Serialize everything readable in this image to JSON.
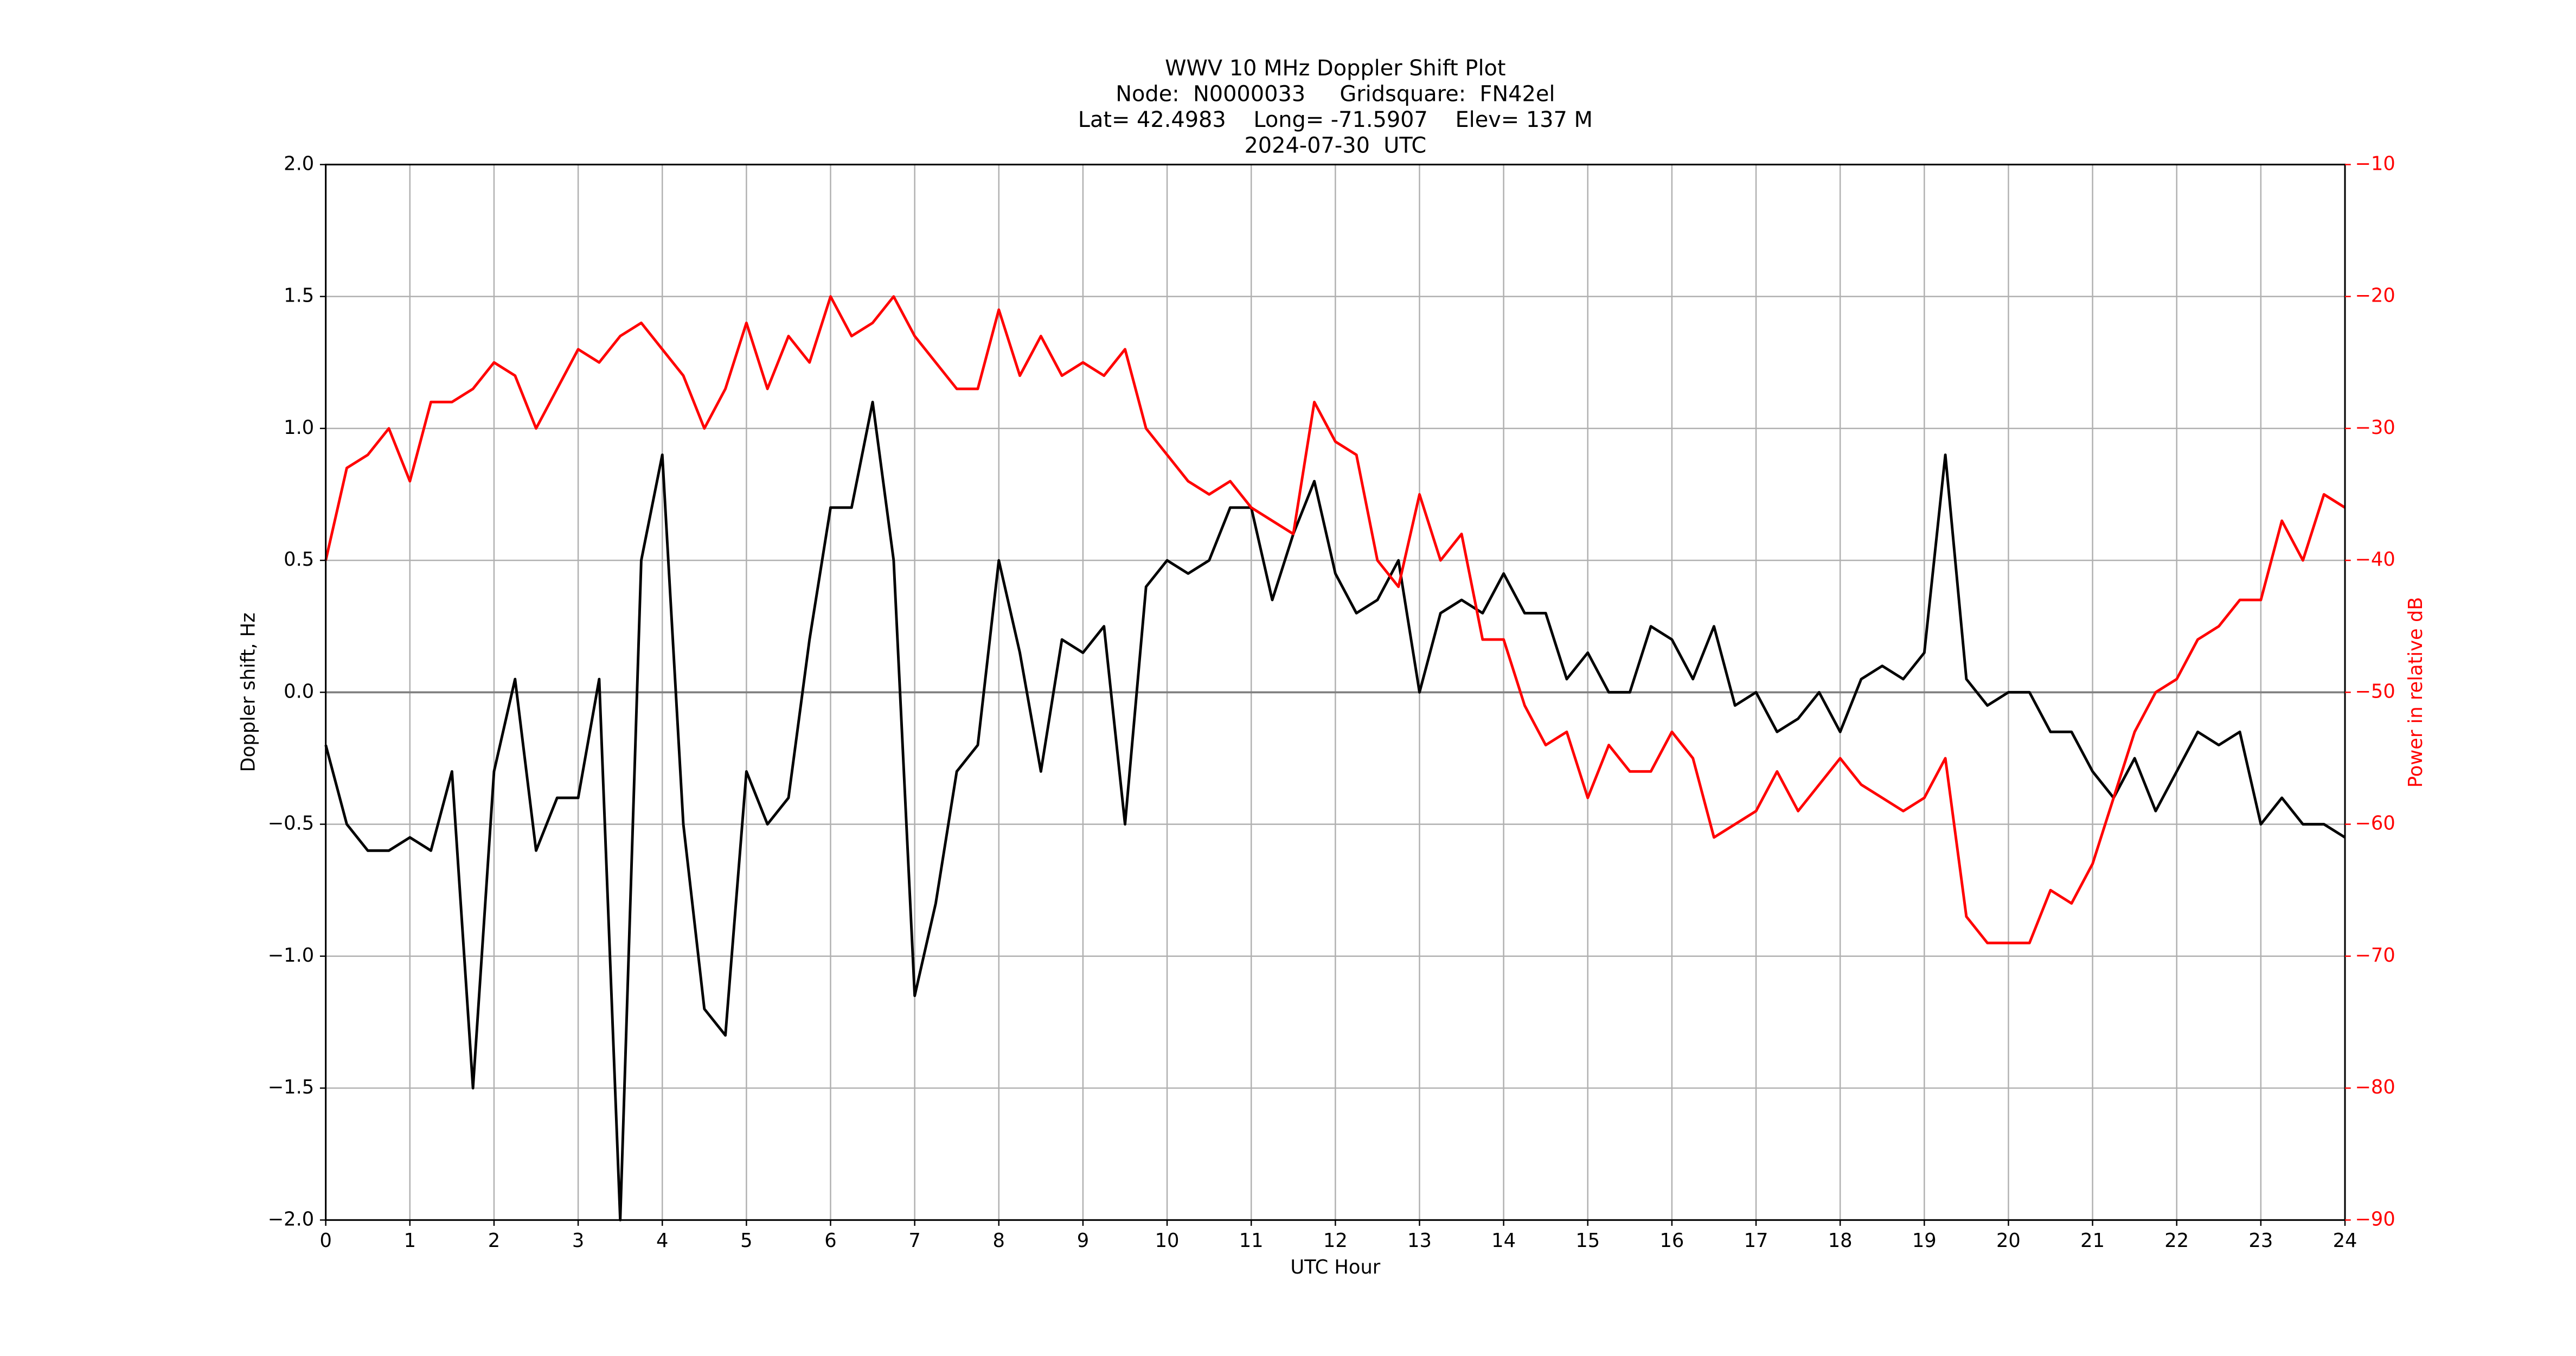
{
  "chart_data": {
    "type": "line",
    "title": "WWV 10 MHz Doppler Shift Plot",
    "subtitle_lines": [
      "Node:  N0000033     Gridsquare:  FN42el",
      "Lat= 42.4983    Long= -71.5907    Elev= 137 M",
      "2024-07-30  UTC"
    ],
    "x_label": "UTC Hour",
    "y_label": "Doppler shift, Hz",
    "y2_label": "Power in relative dB",
    "x": [
      0,
      0.25,
      0.5,
      0.75,
      1,
      1.25,
      1.5,
      1.75,
      2,
      2.25,
      2.5,
      2.75,
      3,
      3.25,
      3.5,
      3.75,
      4,
      4.25,
      4.5,
      4.75,
      5,
      5.25,
      5.5,
      5.75,
      6,
      6.25,
      6.5,
      6.75,
      7,
      7.25,
      7.5,
      7.75,
      8,
      8.25,
      8.5,
      8.75,
      9,
      9.25,
      9.5,
      9.75,
      10,
      10.25,
      10.5,
      10.75,
      11,
      11.25,
      11.5,
      11.75,
      12,
      12.25,
      12.5,
      12.75,
      13,
      13.25,
      13.5,
      13.75,
      14,
      14.25,
      14.5,
      14.75,
      15,
      15.25,
      15.5,
      15.75,
      16,
      16.25,
      16.5,
      16.75,
      17,
      17.25,
      17.5,
      17.75,
      18,
      18.25,
      18.5,
      18.75,
      19,
      19.25,
      19.5,
      19.75,
      20,
      20.25,
      20.5,
      20.75,
      21,
      21.25,
      21.5,
      21.75,
      22,
      22.25,
      22.5,
      22.75,
      23,
      23.25,
      23.5,
      23.75,
      24
    ],
    "series": [
      {
        "color": "#000000",
        "axis": "y",
        "values": [
          -0.2,
          -0.5,
          -0.6,
          -0.6,
          -0.55,
          -0.6,
          -0.3,
          -1.5,
          -0.3,
          0.05,
          -0.6,
          -0.4,
          -0.4,
          0.05,
          -2.0,
          0.5,
          0.9,
          -0.5,
          -1.2,
          -1.3,
          -0.3,
          -0.5,
          -0.4,
          0.2,
          0.7,
          0.7,
          1.1,
          0.5,
          -1.15,
          -0.8,
          -0.3,
          -0.2,
          0.5,
          0.15,
          -0.3,
          0.2,
          0.15,
          0.25,
          -0.5,
          0.4,
          0.5,
          0.45,
          0.5,
          0.7,
          0.7,
          0.35,
          0.6,
          0.8,
          0.45,
          0.3,
          0.35,
          0.5,
          0.0,
          0.3,
          0.35,
          0.3,
          0.45,
          0.3,
          0.3,
          0.05,
          0.15,
          0.0,
          0.0,
          0.25,
          0.2,
          0.05,
          0.25,
          -0.05,
          0.0,
          -0.15,
          -0.1,
          0.0,
          -0.15,
          0.05,
          0.1,
          0.05,
          0.15,
          0.9,
          0.05,
          -0.05,
          0.0,
          0.0,
          -0.15,
          -0.15,
          -0.3,
          -0.4,
          -0.25,
          -0.45,
          -0.3,
          -0.15,
          -0.2,
          -0.15,
          -0.5,
          -0.4,
          -0.5,
          -0.5,
          -0.55
        ]
      },
      {
        "color": "#ff0000",
        "axis": "y2",
        "values": [
          -40,
          -33,
          -32,
          -30,
          -34,
          -28,
          -28,
          -27,
          -25,
          -26,
          -30,
          -27,
          -24,
          -25,
          -23,
          -22,
          -24,
          -26,
          -30,
          -27,
          -22,
          -27,
          -23,
          -25,
          -20,
          -23,
          -22,
          -20,
          -23,
          -25,
          -27,
          -27,
          -21,
          -26,
          -23,
          -26,
          -25,
          -26,
          -24,
          -30,
          -32,
          -34,
          -35,
          -34,
          -36,
          -37,
          -38,
          -28,
          -31,
          -32,
          -40,
          -42,
          -35,
          -40,
          -38,
          -46,
          -46,
          -51,
          -54,
          -53,
          -58,
          -54,
          -56,
          -56,
          -53,
          -55,
          -61,
          -60,
          -59,
          -56,
          -59,
          -57,
          -55,
          -57,
          -58,
          -59,
          -58,
          -55,
          -67,
          -69,
          -69,
          -69,
          -65,
          -66,
          -63,
          -58,
          -53,
          -50,
          -49,
          -46,
          -45,
          -43,
          -43,
          -37,
          -40,
          -35,
          -36
        ]
      }
    ],
    "xlim": [
      0,
      24
    ],
    "xticks": [
      0,
      1,
      2,
      3,
      4,
      5,
      6,
      7,
      8,
      9,
      10,
      11,
      12,
      13,
      14,
      15,
      16,
      17,
      18,
      19,
      20,
      21,
      22,
      23,
      24
    ],
    "ylim": [
      -2,
      2
    ],
    "yticks": [
      {
        "value": -2,
        "label": "−2.0"
      },
      {
        "value": -1.5,
        "label": "−1.5"
      },
      {
        "value": -1,
        "label": "−1.0"
      },
      {
        "value": -0.5,
        "label": "−0.5"
      },
      {
        "value": 0,
        "label": "0.0"
      },
      {
        "value": 0.5,
        "label": "0.5"
      },
      {
        "value": 1,
        "label": "1.0"
      },
      {
        "value": 1.5,
        "label": "1.5"
      },
      {
        "value": 2,
        "label": "2.0"
      }
    ],
    "y2lim": [
      -90,
      -10
    ],
    "y2ticks": [
      {
        "value": -90,
        "label": "−90"
      },
      {
        "value": -80,
        "label": "−80"
      },
      {
        "value": -70,
        "label": "−70"
      },
      {
        "value": -60,
        "label": "−60"
      },
      {
        "value": -50,
        "label": "−50"
      },
      {
        "value": -40,
        "label": "−40"
      },
      {
        "value": -30,
        "label": "−30"
      },
      {
        "value": -20,
        "label": "−20"
      },
      {
        "value": -10,
        "label": "−10"
      }
    ],
    "y2_color": "#ff0000",
    "grid": true
  }
}
